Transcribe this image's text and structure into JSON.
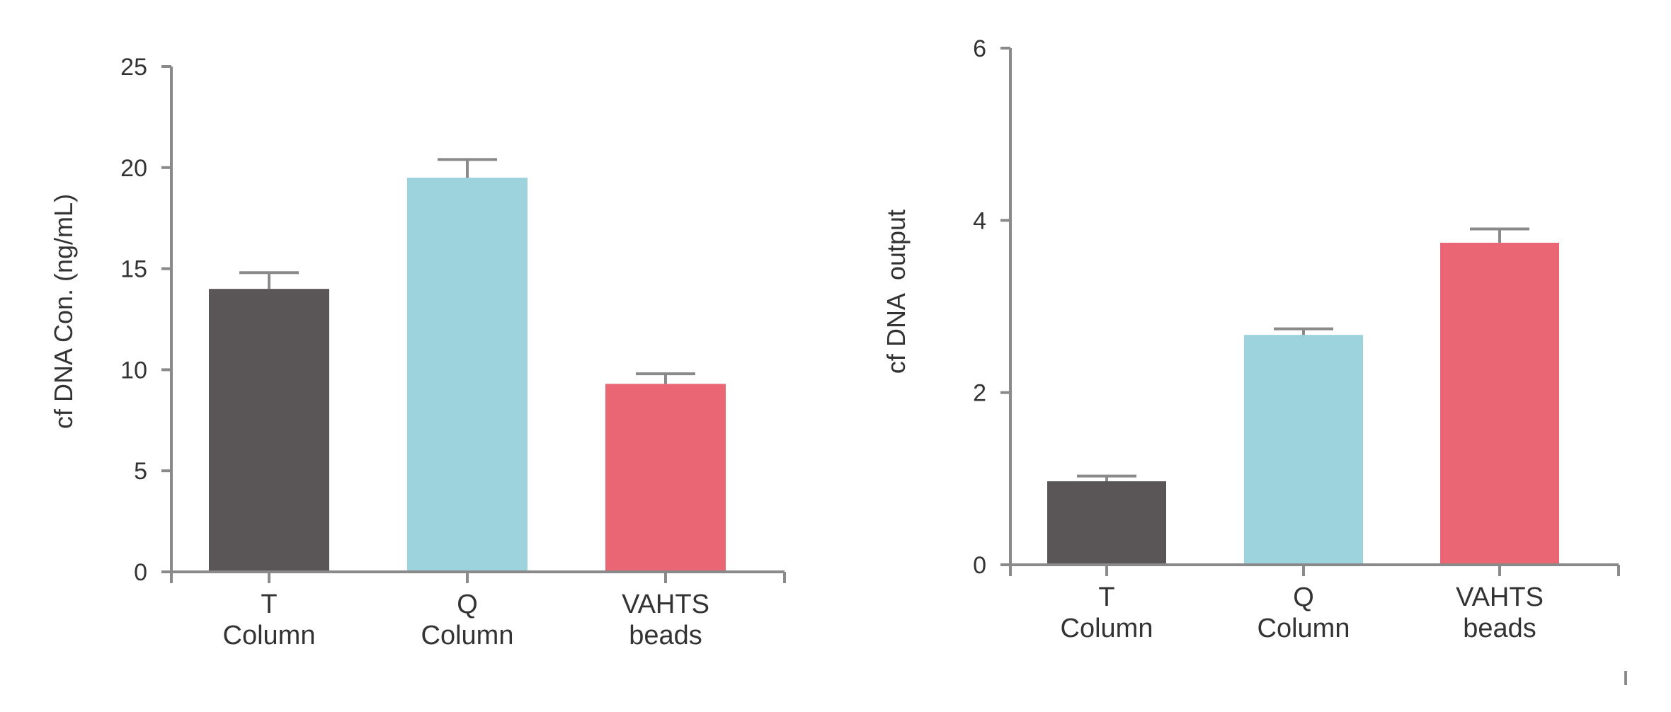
{
  "chart_data": [
    {
      "type": "bar",
      "categories": [
        [
          "T",
          "Column"
        ],
        [
          "Q",
          "Column"
        ],
        [
          "VAHTS",
          "beads"
        ]
      ],
      "values": [
        14.0,
        19.5,
        9.3
      ],
      "errors": [
        0.8,
        0.9,
        0.5
      ],
      "colors": [
        "#5a5556",
        "#9dd3dc",
        "#ea6674"
      ],
      "ylabel": "cf DNA Con. (ng/mL)",
      "xlabel": "",
      "ylim": [
        0,
        25
      ],
      "yticks": [
        0,
        5,
        10,
        15,
        20,
        25
      ],
      "grid": false,
      "legend": "none"
    },
    {
      "type": "bar",
      "categories": [
        [
          "T",
          "Column"
        ],
        [
          "Q",
          "Column"
        ],
        [
          "VAHTS",
          "beads"
        ]
      ],
      "values": [
        0.97,
        2.67,
        3.74
      ],
      "errors": [
        0.06,
        0.07,
        0.16
      ],
      "colors": [
        "#5a5556",
        "#9dd3dc",
        "#ea6674"
      ],
      "ylabel": "cf DNA  output",
      "xlabel": "",
      "ylim": [
        0,
        6
      ],
      "yticks": [
        0,
        2,
        4,
        6
      ],
      "grid": false,
      "legend": "none"
    }
  ],
  "style": {
    "axis_color": "#8a8a8a",
    "text_color": "#333333"
  }
}
